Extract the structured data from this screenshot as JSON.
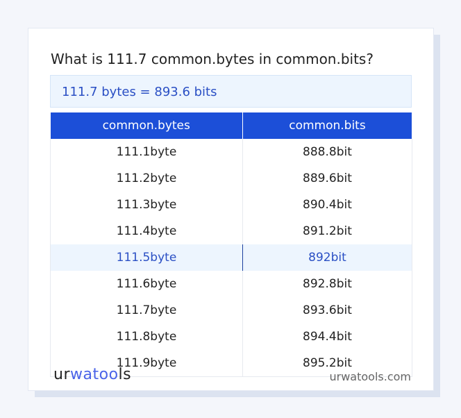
{
  "title": "What is 111.7 common.bytes in common.bits?",
  "result": "111.7 bytes = 893.6 bits",
  "table": {
    "headers": [
      "common.bytes",
      "common.bits"
    ],
    "rows": [
      [
        "111.1byte",
        "888.8bit"
      ],
      [
        "111.2byte",
        "889.6bit"
      ],
      [
        "111.3byte",
        "890.4bit"
      ],
      [
        "111.4byte",
        "891.2bit"
      ],
      [
        "111.5byte",
        "892bit"
      ],
      [
        "111.6byte",
        "892.8bit"
      ],
      [
        "111.7byte",
        "893.6bit"
      ],
      [
        "111.8byte",
        "894.4bit"
      ],
      [
        "111.9byte",
        "895.2bit"
      ]
    ],
    "highlighted_row": 4
  },
  "footer": {
    "logo": "urwatools",
    "logo_parts": [
      "ur",
      "wa",
      "too",
      "ls"
    ],
    "site": "urwatools.com"
  },
  "colors": {
    "accent": "#1c4fd8",
    "highlight_bg": "#edf5fe"
  }
}
